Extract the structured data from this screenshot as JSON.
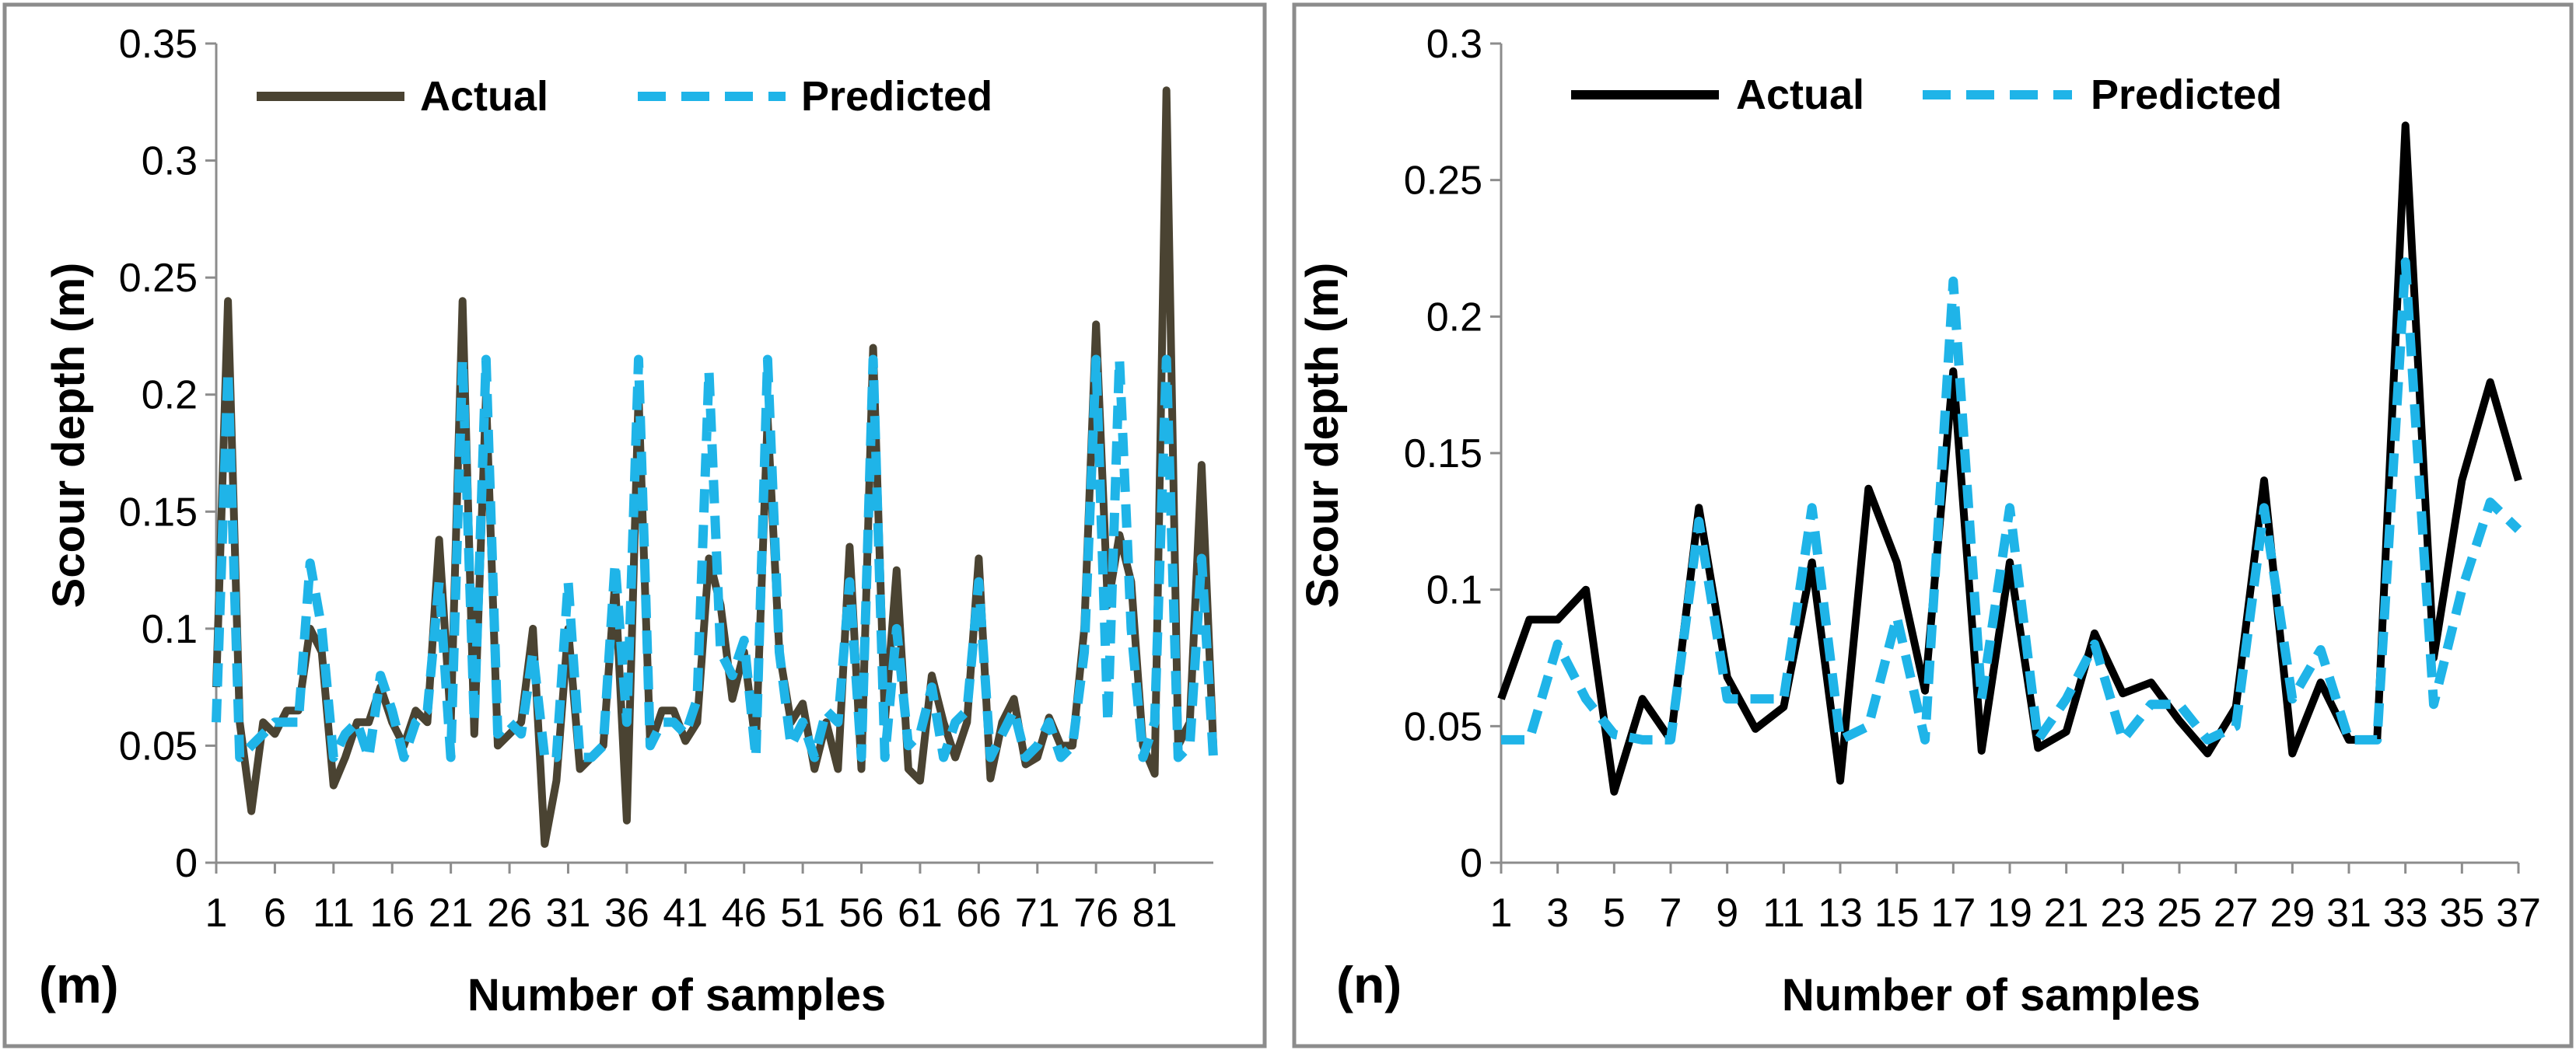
{
  "colors": {
    "actual_left": "#4a4332",
    "actual_right": "#000000",
    "predicted": "#1fb4e8",
    "frame": "#8c8c8c"
  },
  "chart_data": [
    {
      "type": "line",
      "panel_label": "(m)",
      "title": "",
      "xlabel": "Number of samples",
      "ylabel": "Scour depth (m)",
      "ylim": [
        0,
        0.35
      ],
      "yticks": [
        "0",
        "0.05",
        "0.1",
        "0.15",
        "0.2",
        "0.25",
        "0.3",
        "0.35"
      ],
      "xlim": [
        1,
        86
      ],
      "xtick_labels": [
        "1",
        "6",
        "11",
        "16",
        "21",
        "26",
        "31",
        "36",
        "41",
        "46",
        "51",
        "56",
        "61",
        "66",
        "71",
        "76",
        "81"
      ],
      "legend": [
        "Actual",
        "Predicted"
      ],
      "legend_position": "top",
      "x": [
        1,
        2,
        3,
        4,
        5,
        6,
        7,
        8,
        9,
        10,
        11,
        12,
        13,
        14,
        15,
        16,
        17,
        18,
        19,
        20,
        21,
        22,
        23,
        24,
        25,
        26,
        27,
        28,
        29,
        30,
        31,
        32,
        33,
        34,
        35,
        36,
        37,
        38,
        39,
        40,
        41,
        42,
        43,
        44,
        45,
        46,
        47,
        48,
        49,
        50,
        51,
        52,
        53,
        54,
        55,
        56,
        57,
        58,
        59,
        60,
        61,
        62,
        63,
        64,
        65,
        66,
        67,
        68,
        69,
        70,
        71,
        72,
        73,
        74,
        75,
        76,
        77,
        78,
        79,
        80,
        81,
        82,
        83,
        84,
        85,
        86
      ],
      "series": [
        {
          "name": "Actual",
          "values": [
            0.075,
            0.24,
            0.06,
            0.022,
            0.06,
            0.055,
            0.065,
            0.065,
            0.1,
            0.09,
            0.033,
            0.045,
            0.06,
            0.06,
            0.075,
            0.06,
            0.05,
            0.065,
            0.06,
            0.138,
            0.06,
            0.24,
            0.055,
            0.2,
            0.05,
            0.055,
            0.06,
            0.1,
            0.008,
            0.035,
            0.1,
            0.04,
            0.045,
            0.05,
            0.12,
            0.018,
            0.2,
            0.05,
            0.065,
            0.065,
            0.052,
            0.06,
            0.13,
            0.11,
            0.07,
            0.09,
            0.05,
            0.19,
            0.09,
            0.06,
            0.068,
            0.04,
            0.06,
            0.04,
            0.135,
            0.04,
            0.22,
            0.06,
            0.125,
            0.04,
            0.035,
            0.08,
            0.06,
            0.045,
            0.06,
            0.13,
            0.036,
            0.06,
            0.07,
            0.042,
            0.045,
            0.062,
            0.05,
            0.05,
            0.1,
            0.23,
            0.11,
            0.14,
            0.12,
            0.05,
            0.038,
            0.33,
            0.05,
            0.06,
            0.17,
            0.05
          ]
        },
        {
          "name": "Predicted",
          "values": [
            0.06,
            0.21,
            0.045,
            0.05,
            0.055,
            0.06,
            0.06,
            0.06,
            0.128,
            0.1,
            0.045,
            0.055,
            0.06,
            0.045,
            0.08,
            0.065,
            0.045,
            0.06,
            0.065,
            0.12,
            0.045,
            0.215,
            0.06,
            0.215,
            0.055,
            0.06,
            0.055,
            0.09,
            0.045,
            0.045,
            0.12,
            0.045,
            0.045,
            0.05,
            0.128,
            0.06,
            0.215,
            0.05,
            0.06,
            0.06,
            0.055,
            0.07,
            0.21,
            0.09,
            0.08,
            0.095,
            0.045,
            0.215,
            0.09,
            0.05,
            0.06,
            0.045,
            0.065,
            0.06,
            0.12,
            0.045,
            0.215,
            0.045,
            0.1,
            0.05,
            0.055,
            0.075,
            0.045,
            0.06,
            0.065,
            0.12,
            0.045,
            0.055,
            0.065,
            0.045,
            0.05,
            0.06,
            0.045,
            0.05,
            0.09,
            0.215,
            0.06,
            0.215,
            0.1,
            0.045,
            0.06,
            0.215,
            0.045,
            0.05,
            0.13,
            0.045
          ]
        }
      ]
    },
    {
      "type": "line",
      "panel_label": "(n)",
      "title": "",
      "xlabel": "Number of samples",
      "ylabel": "Scour depth (m)",
      "ylim": [
        0,
        0.3
      ],
      "yticks": [
        "0",
        "0.05",
        "0.1",
        "0.15",
        "0.2",
        "0.25",
        "0.3"
      ],
      "xlim": [
        1,
        37
      ],
      "xtick_labels": [
        "1",
        "3",
        "5",
        "7",
        "9",
        "11",
        "13",
        "15",
        "17",
        "19",
        "21",
        "23",
        "25",
        "27",
        "29",
        "31",
        "33",
        "35",
        "37"
      ],
      "legend": [
        "Actual",
        "Predicted"
      ],
      "legend_position": "top",
      "x": [
        1,
        2,
        3,
        4,
        5,
        6,
        7,
        8,
        9,
        10,
        11,
        12,
        13,
        14,
        15,
        16,
        17,
        18,
        19,
        20,
        21,
        22,
        23,
        24,
        25,
        26,
        27,
        28,
        29,
        30,
        31,
        32,
        33,
        34,
        35,
        36,
        37
      ],
      "series": [
        {
          "name": "Actual",
          "values": [
            0.06,
            0.089,
            0.089,
            0.1,
            0.026,
            0.06,
            0.045,
            0.13,
            0.068,
            0.049,
            0.057,
            0.11,
            0.03,
            0.137,
            0.11,
            0.063,
            0.18,
            0.041,
            0.11,
            0.042,
            0.048,
            0.084,
            0.062,
            0.066,
            0.052,
            0.04,
            0.057,
            0.14,
            0.04,
            0.066,
            0.045,
            0.045,
            0.27,
            0.075,
            0.14,
            0.176,
            0.14
          ]
        },
        {
          "name": "Predicted",
          "values": [
            0.045,
            0.045,
            0.08,
            0.06,
            0.047,
            0.045,
            0.045,
            0.125,
            0.06,
            0.06,
            0.06,
            0.13,
            0.045,
            0.05,
            0.09,
            0.045,
            0.213,
            0.06,
            0.13,
            0.045,
            0.06,
            0.08,
            0.045,
            0.058,
            0.058,
            0.045,
            0.05,
            0.13,
            0.06,
            0.078,
            0.045,
            0.045,
            0.22,
            0.058,
            0.1,
            0.132,
            0.122
          ]
        }
      ]
    }
  ]
}
